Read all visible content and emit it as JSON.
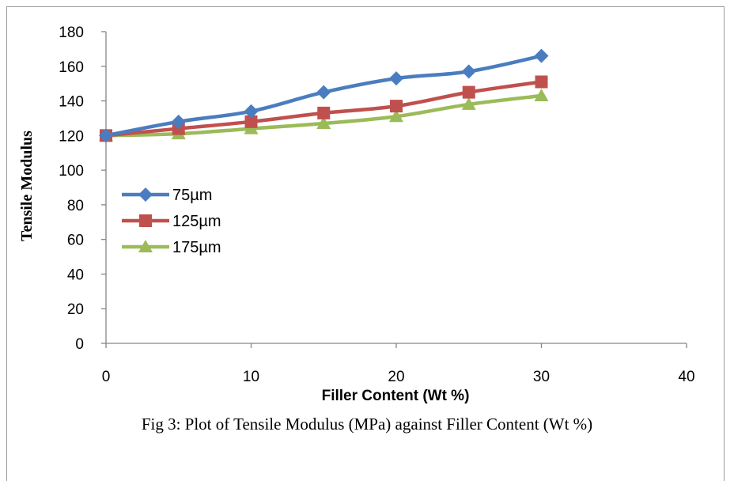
{
  "chart_data": {
    "type": "line",
    "xlabel": "Filler Content (Wt %)",
    "ylabel": "Tensile Modulus",
    "xlim": [
      0,
      40
    ],
    "ylim": [
      0,
      180
    ],
    "xticks": [
      0,
      10,
      20,
      30,
      40
    ],
    "yticks": [
      0,
      20,
      40,
      60,
      80,
      100,
      120,
      140,
      160,
      180
    ],
    "grid": false,
    "legend_position": "left",
    "x": [
      0,
      5,
      10,
      15,
      20,
      25,
      30
    ],
    "series": [
      {
        "name": "75µm",
        "color": "#4a7dbf",
        "marker": "diamond",
        "values": [
          120,
          128,
          134,
          145,
          153,
          157,
          166
        ]
      },
      {
        "name": "125µm",
        "color": "#c0504d",
        "marker": "square",
        "values": [
          120,
          124,
          128,
          133,
          137,
          145,
          151
        ]
      },
      {
        "name": "175µm",
        "color": "#9bbb59",
        "marker": "triangle",
        "values": [
          120,
          121,
          124,
          127,
          131,
          138,
          143
        ]
      }
    ]
  },
  "caption": "Fig 3: Plot of Tensile Modulus (MPa) against Filler Content (Wt %)"
}
